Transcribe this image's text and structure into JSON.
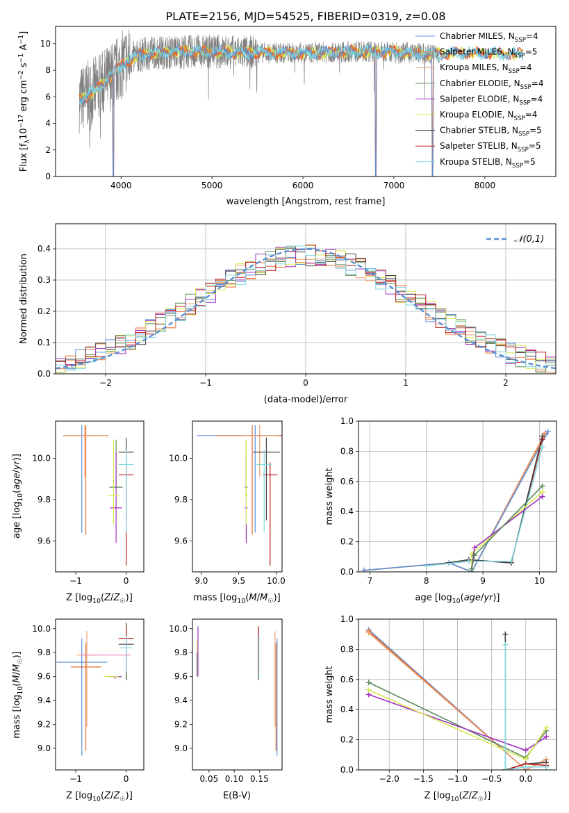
{
  "figure": {
    "title": "PLATE=2156, MJD=54525, FIBERID=0319, z=0.08"
  },
  "colors": {
    "Chabrier MILES": "#5b8fd6",
    "Salpeter MILES": "#e86b2f",
    "Kroupa MILES": "#f0a070",
    "Chabrier ELODIE": "#5a8a5a",
    "Salpeter ELODIE": "#a030c0",
    "Kroupa ELODIE": "#d8e850",
    "Chabrier STELIB": "#444444",
    "Salpeter STELIB": "#c01818",
    "Kroupa STELIB": "#7fd8e0",
    "data": "#808080",
    "normal": "#5b8fd6",
    "extra_pink": "#f080c0"
  },
  "chart_data": [
    {
      "id": "spectrum",
      "type": "line",
      "xlabel": "wavelength [Angstrom, rest frame]",
      "ylabel": "Flux [f_λ10^-17 erg cm^-2 s^-1 A^-1]",
      "xlim": [
        3280,
        8780
      ],
      "ylim": [
        0,
        11.3
      ],
      "xticks": [
        4000,
        5000,
        6000,
        7000,
        8000
      ],
      "yticks": [
        0,
        2,
        4,
        6,
        8,
        10
      ],
      "grid": false,
      "legend_position": "right",
      "legend": [
        {
          "name": "Chabrier MILES",
          "nssp": "4"
        },
        {
          "name": "Salpeter MILES",
          "nssp": "5"
        },
        {
          "name": "Kroupa MILES",
          "nssp": "4"
        },
        {
          "name": "Chabrier ELODIE",
          "nssp": "4"
        },
        {
          "name": "Salpeter ELODIE",
          "nssp": "4"
        },
        {
          "name": "Kroupa ELODIE",
          "nssp": "4"
        },
        {
          "name": "Chabrier STELIB",
          "nssp": "5"
        },
        {
          "name": "Salpeter STELIB",
          "nssp": "5"
        },
        {
          "name": "Kroupa STELIB",
          "nssp": "5"
        }
      ],
      "continuum_knots": [
        [
          3550,
          5.8
        ],
        [
          3700,
          6.4
        ],
        [
          3900,
          7.6
        ],
        [
          4050,
          8.7
        ],
        [
          4300,
          9.3
        ],
        [
          4700,
          9.4
        ],
        [
          5100,
          9.4
        ],
        [
          5600,
          9.3
        ],
        [
          6100,
          9.3
        ],
        [
          6600,
          9.4
        ],
        [
          7000,
          9.4
        ],
        [
          7400,
          9.2
        ],
        [
          7800,
          9.3
        ],
        [
          8400,
          9.2
        ]
      ],
      "data_range": [
        3540,
        7500
      ],
      "model_range": [
        3540,
        8420
      ],
      "deep_dips": [
        3915,
        6800,
        7425
      ]
    },
    {
      "id": "residual-histogram",
      "type": "line",
      "xlabel": "(data-model)/error",
      "ylabel": "Normed distribution",
      "xlim": [
        -2.5,
        2.5
      ],
      "ylim": [
        0,
        0.48
      ],
      "xticks": [
        -2,
        -1,
        0,
        1,
        2
      ],
      "yticks": [
        0.0,
        0.1,
        0.2,
        0.3,
        0.4
      ],
      "grid": true,
      "legend_position": "top-right",
      "legend_label": "𝒩(0,1)",
      "bin_width": 0.1,
      "envelope": "gaussian sigma~1.05, peak~0.38"
    },
    {
      "id": "age-vs-Z",
      "type": "scatter",
      "xlabel": "Z [log10(Z/Z☉)]",
      "ylabel": "age [log10(age/yr)]",
      "xlim": [
        -1.4,
        0.35
      ],
      "ylim": [
        9.45,
        10.18
      ],
      "xticks": [
        -1,
        0
      ],
      "yticks": [
        9.6,
        9.8,
        10.0
      ],
      "points": [
        {
          "s": "Chabrier MILES",
          "x": -0.88,
          "xerr": 0.37,
          "y": 10.11,
          "yerr": [
            0.47,
            0.05
          ]
        },
        {
          "s": "Salpeter MILES",
          "x": -0.8,
          "xerr": 0.45,
          "y": 10.11,
          "yerr": [
            0.48,
            0.05
          ]
        },
        {
          "s": "Kroupa MILES",
          "x": -0.82,
          "xerr": 0.43,
          "y": 10.11,
          "yerr": [
            0.2,
            0.05
          ]
        },
        {
          "s": "Chabrier ELODIE",
          "x": -0.2,
          "xerr": 0.13,
          "y": 9.86,
          "yerr": [
            0.0,
            0.23
          ]
        },
        {
          "s": "Salpeter ELODIE",
          "x": -0.2,
          "xerr": 0.12,
          "y": 9.76,
          "yerr": [
            0.17,
            0.27
          ]
        },
        {
          "s": "Kroupa ELODIE",
          "x": -0.25,
          "xerr": 0.12,
          "y": 9.82,
          "yerr": [
            0.14,
            0.27
          ]
        },
        {
          "s": "Chabrier STELIB",
          "x": 0.0,
          "xerr": 0.15,
          "y": 10.03,
          "yerr": [
            0.33,
            0.07
          ]
        },
        {
          "s": "Salpeter STELIB",
          "x": 0.0,
          "xerr": 0.15,
          "y": 9.92,
          "yerr": [
            0.44,
            0.06
          ]
        },
        {
          "s": "Kroupa STELIB",
          "x": 0.0,
          "xerr": 0.15,
          "y": 9.97,
          "yerr": [
            0.33,
            0.07
          ]
        }
      ]
    },
    {
      "id": "age-vs-mass",
      "type": "scatter",
      "xlabel": "mass [log10(M/M☉)]",
      "ylabel": "",
      "xlim": [
        8.88,
        10.08
      ],
      "ylim": [
        9.45,
        10.18
      ],
      "xticks": [
        9.0,
        9.5,
        10.0
      ],
      "yticks": [
        9.6,
        9.8,
        10.0
      ],
      "points": [
        {
          "s": "Chabrier MILES",
          "x": 9.72,
          "xerr": 0.78,
          "y": 10.11,
          "yerr": [
            0.47,
            0.05
          ]
        },
        {
          "s": "Salpeter MILES",
          "x": 9.68,
          "xerr": 0.48,
          "y": 10.11,
          "yerr": [
            0.48,
            0.05
          ]
        },
        {
          "s": "Kroupa MILES",
          "x": 9.78,
          "xerr": 0.25,
          "y": 10.11,
          "yerr": [
            0.2,
            0.05
          ]
        },
        {
          "s": "Chabrier ELODIE",
          "x": 9.6,
          "xerr": 0.02,
          "y": 9.86,
          "yerr": [
            0.0,
            0.23
          ]
        },
        {
          "s": "Salpeter ELODIE",
          "x": 9.6,
          "xerr": 0.02,
          "y": 9.76,
          "yerr": [
            0.17,
            0.27
          ]
        },
        {
          "s": "Kroupa ELODIE",
          "x": 9.6,
          "xerr": 0.02,
          "y": 9.82,
          "yerr": [
            0.14,
            0.27
          ]
        },
        {
          "s": "Chabrier STELIB",
          "x": 9.87,
          "xerr": 0.18,
          "y": 10.03,
          "yerr": [
            0.33,
            0.07
          ]
        },
        {
          "s": "Salpeter STELIB",
          "x": 9.92,
          "xerr": 0.1,
          "y": 9.92,
          "yerr": [
            0.44,
            0.06
          ]
        },
        {
          "s": "Kroupa STELIB",
          "x": 9.84,
          "xerr": 0.1,
          "y": 9.97,
          "yerr": [
            0.33,
            0.07
          ]
        }
      ]
    },
    {
      "id": "mass-weight-vs-age",
      "type": "line",
      "xlabel": "age [log10(age/yr)]",
      "ylabel": "mass weight",
      "xlim": [
        6.8,
        10.3
      ],
      "ylim": [
        0,
        1.0
      ],
      "xticks": [
        7,
        8,
        9,
        10
      ],
      "yticks": [
        0.0,
        0.2,
        0.4,
        0.6,
        0.8,
        1.0
      ],
      "grid": true,
      "series": [
        {
          "s": "Salpeter MILES",
          "x": [
            6.9,
            8.4,
            8.8,
            10.1
          ],
          "y": [
            0.01,
            0.06,
            0.0,
            0.92
          ]
        },
        {
          "s": "Kroupa MILES",
          "x": [
            6.9,
            8.4,
            8.8,
            10.1
          ],
          "y": [
            0.01,
            0.06,
            0.0,
            0.91
          ]
        },
        {
          "s": "Chabrier MILES",
          "x": [
            6.9,
            8.4,
            8.8,
            10.15
          ],
          "y": [
            0.01,
            0.06,
            0.0,
            0.93
          ]
        },
        {
          "s": "Salpeter STELIB",
          "x": [
            8.0,
            8.75,
            9.5,
            10.05
          ],
          "y": [
            0.04,
            0.08,
            0.06,
            0.88
          ]
        },
        {
          "s": "Chabrier STELIB",
          "x": [
            8.0,
            8.75,
            9.5,
            10.05
          ],
          "y": [
            0.04,
            0.08,
            0.06,
            0.9
          ]
        },
        {
          "s": "Kroupa STELIB",
          "x": [
            8.0,
            8.75,
            9.5,
            10.05
          ],
          "y": [
            0.04,
            0.07,
            0.07,
            0.83
          ]
        },
        {
          "s": "Kroupa ELODIE",
          "x": [
            8.8,
            8.8,
            10.05
          ],
          "y": [
            0.0,
            0.12,
            0.53
          ]
        },
        {
          "s": "Salpeter ELODIE",
          "x": [
            8.8,
            8.85,
            10.05
          ],
          "y": [
            0.02,
            0.16,
            0.5
          ]
        },
        {
          "s": "Chabrier ELODIE",
          "x": [
            8.8,
            8.85,
            10.05
          ],
          "y": [
            0.02,
            0.11,
            0.57
          ]
        }
      ]
    },
    {
      "id": "mass-vs-Z",
      "type": "scatter",
      "xlabel": "Z [log10(Z/Z☉)]",
      "ylabel": "mass [log10(M/M☉)]",
      "xlim": [
        -1.4,
        0.35
      ],
      "ylim": [
        8.82,
        10.08
      ],
      "xticks": [
        -1,
        0
      ],
      "yticks": [
        9.0,
        9.2,
        9.4,
        9.6,
        9.8,
        10.0
      ],
      "points": [
        {
          "s": "Chabrier MILES",
          "x": -0.88,
          "xerr": 0.5,
          "y": 9.72,
          "yerr": [
            0.78,
            0.2
          ]
        },
        {
          "s": "Salpeter MILES",
          "x": -0.8,
          "xerr": 0.3,
          "y": 9.68,
          "yerr": [
            0.7,
            0.2
          ]
        },
        {
          "s": "Kroupa MILES",
          "x": -0.78,
          "xerr": 0.2,
          "y": 9.78,
          "yerr": [
            0.6,
            0.2
          ]
        },
        {
          "s": "extra pink",
          "x": -0.4,
          "xerr": 0.5,
          "y": 9.78,
          "yerr": [
            0.0,
            0.0
          ]
        },
        {
          "s": "Chabrier ELODIE",
          "x": -0.22,
          "xerr": 0.13,
          "y": 9.6,
          "yerr": [
            0.0,
            0.0
          ]
        },
        {
          "s": "Salpeter ELODIE",
          "x": -0.22,
          "xerr": 0.13,
          "y": 9.6,
          "yerr": [
            0.02,
            0.0
          ]
        },
        {
          "s": "Kroupa ELODIE",
          "x": -0.3,
          "xerr": 0.15,
          "y": 9.6,
          "yerr": [
            0.0,
            0.0
          ]
        },
        {
          "s": "Chabrier STELIB",
          "x": 0.0,
          "xerr": 0.15,
          "y": 9.87,
          "yerr": [
            0.3,
            0.18
          ]
        },
        {
          "s": "Salpeter STELIB",
          "x": 0.0,
          "xerr": 0.15,
          "y": 9.92,
          "yerr": [
            0.28,
            0.1
          ]
        },
        {
          "s": "Kroupa STELIB",
          "x": 0.0,
          "xerr": 0.12,
          "y": 9.84,
          "yerr": [
            0.2,
            0.1
          ]
        }
      ]
    },
    {
      "id": "mass-vs-EBV",
      "type": "scatter",
      "xlabel": "E(B-V)",
      "ylabel": "",
      "xlim": [
        0.017,
        0.195
      ],
      "ylim": [
        8.82,
        10.08
      ],
      "xticks": [
        0.05,
        0.1,
        0.15
      ],
      "yticks": [
        9.0,
        9.2,
        9.4,
        9.6,
        9.8,
        10.0
      ],
      "points": [
        {
          "s": "Kroupa ELODIE",
          "x": 0.026,
          "xerr": 0.0,
          "y": 9.6,
          "yerr": [
            0.0,
            0.3
          ]
        },
        {
          "s": "Chabrier ELODIE",
          "x": 0.026,
          "xerr": 0.0,
          "y": 9.6,
          "yerr": [
            0.0,
            0.2
          ]
        },
        {
          "s": "Salpeter ELODIE",
          "x": 0.028,
          "xerr": 0.0,
          "y": 9.6,
          "yerr": [
            0.0,
            0.42
          ]
        },
        {
          "s": "Chabrier STELIB",
          "x": 0.148,
          "xerr": 0.0,
          "y": 9.87,
          "yerr": [
            0.3,
            0.15
          ]
        },
        {
          "s": "Salpeter STELIB",
          "x": 0.148,
          "xerr": 0.0,
          "y": 9.92,
          "yerr": [
            0.3,
            0.1
          ]
        },
        {
          "s": "Kroupa STELIB",
          "x": 0.149,
          "xerr": 0.0,
          "y": 9.84,
          "yerr": [
            0.25,
            0.1
          ]
        },
        {
          "s": "Chabrier MILES",
          "x": 0.185,
          "xerr": 0.0,
          "y": 9.72,
          "yerr": [
            0.78,
            0.2
          ]
        },
        {
          "s": "Salpeter MILES",
          "x": 0.183,
          "xerr": 0.0,
          "y": 9.68,
          "yerr": [
            0.7,
            0.2
          ]
        },
        {
          "s": "Kroupa MILES",
          "x": 0.181,
          "xerr": 0.0,
          "y": 9.78,
          "yerr": [
            0.6,
            0.2
          ]
        }
      ]
    },
    {
      "id": "mass-weight-vs-Z",
      "type": "line",
      "xlabel": "Z [log10(Z/Z☉)]",
      "ylabel": "mass weight",
      "xlim": [
        -2.45,
        0.45
      ],
      "ylim": [
        0,
        1.0
      ],
      "xticks": [
        -2.0,
        -1.5,
        -1.0,
        -0.5,
        0.0
      ],
      "yticks": [
        0.0,
        0.2,
        0.4,
        0.6,
        0.8,
        1.0
      ],
      "grid": true,
      "series": [
        {
          "s": "Chabrier MILES",
          "x": [
            -2.3,
            0.0,
            0.3
          ],
          "y": [
            0.93,
            0.0,
            0.07
          ]
        },
        {
          "s": "Salpeter MILES",
          "x": [
            -2.3,
            0.0,
            0.3
          ],
          "y": [
            0.92,
            0.0,
            0.07
          ]
        },
        {
          "s": "Kroupa MILES",
          "x": [
            -2.3,
            0.0,
            0.3
          ],
          "y": [
            0.91,
            0.0,
            0.07
          ]
        },
        {
          "s": "Chabrier ELODIE",
          "x": [
            -2.3,
            0.0,
            0.3
          ],
          "y": [
            0.58,
            0.08,
            0.26
          ]
        },
        {
          "s": "Salpeter ELODIE",
          "x": [
            -2.3,
            0.0,
            0.3
          ],
          "y": [
            0.5,
            0.13,
            0.22
          ]
        },
        {
          "s": "Kroupa ELODIE",
          "x": [
            -2.3,
            0.0,
            0.3
          ],
          "y": [
            0.53,
            0.07,
            0.28
          ]
        },
        {
          "s": "Chabrier STELIB",
          "x": [
            -0.3,
            -0.3,
            0.0,
            0.3
          ],
          "y": [
            0.9,
            0.0,
            0.04,
            0.05
          ]
        },
        {
          "s": "Salpeter STELIB",
          "x": [
            -0.3,
            0.0,
            0.3
          ],
          "y": [
            0.0,
            0.04,
            0.03
          ]
        },
        {
          "s": "Kroupa STELIB",
          "x": [
            -0.3,
            -0.3,
            0.0,
            0.3
          ],
          "y": [
            0.83,
            0.0,
            0.02,
            0.02
          ]
        }
      ]
    }
  ]
}
